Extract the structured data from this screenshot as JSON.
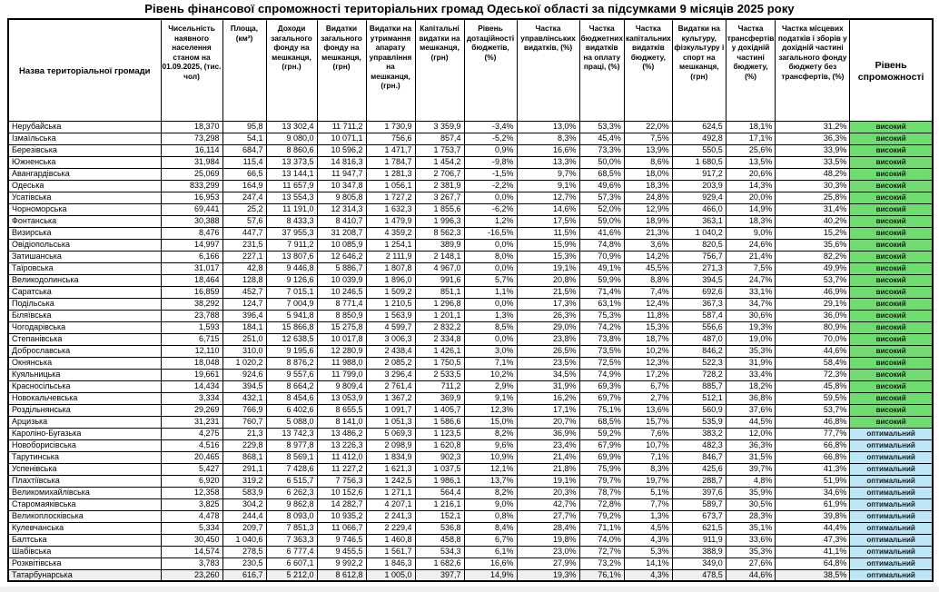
{
  "title": "Рівень фінансової спроможності територіальних громад Одеської області за підсумками 9 місяців 2025 року",
  "table": {
    "columns": [
      {
        "label": "Назва територіальної громади"
      },
      {
        "label": "Чисельність наявного населення станом на 01.09.2025, (тис. чол)"
      },
      {
        "label": "Площа, (км²)"
      },
      {
        "label": "Доходи загального фонду на мешканця, (грн.)"
      },
      {
        "label": "Видатки загального фонду на мешканця, (грн)"
      },
      {
        "label": "Видатки на утримання апарату управління на мешканця, (грн.)"
      },
      {
        "label": "Капітальні видатки на мешканця, (грн)"
      },
      {
        "label": "Рівень дотаційності бюджетів, (%)"
      },
      {
        "label": "Частка управлінських видатків, (%)"
      },
      {
        "label": "Частка бюджетних видатків на оплату праці, (%)"
      },
      {
        "label": "Частка капітальних видатків бюджету, (%)"
      },
      {
        "label": "Видатки на культуру, фізкультуру і спорт на мешканця, (грн)"
      },
      {
        "label": "Частка трансфертів у дохідній частині бюджету, (%)"
      },
      {
        "label": "Частка місцевих податків і зборів у дохідній частині загального фонду бюджету без трансфертів, (%)"
      },
      {
        "label": "Рівень спроможності"
      }
    ],
    "status_colors": {
      "високий": "#6fdc6f",
      "оптимальний": "#bde7f6"
    },
    "rows": [
      {
        "name": "Нерубайська",
        "values": [
          "18,370",
          "95,8",
          "13 302,4",
          "11 711,2",
          "1 730,9",
          "3 359,9",
          "-3,4%",
          "13,0%",
          "53,3%",
          "22,0%",
          "624,5",
          "18,1%",
          "31,2%"
        ],
        "status": "високий"
      },
      {
        "name": "Ізмаїльська",
        "values": [
          "73,298",
          "54,1",
          "9 080,0",
          "10 071,1",
          "756,6",
          "857,4",
          "-5,2%",
          "8,3%",
          "45,4%",
          "7,5%",
          "492,8",
          "17,1%",
          "36,3%"
        ],
        "status": "високий"
      },
      {
        "name": "Березівська",
        "values": [
          "16,114",
          "684,7",
          "8 860,6",
          "10 596,2",
          "1 471,7",
          "1 753,7",
          "0,9%",
          "16,6%",
          "73,3%",
          "13,9%",
          "550,5",
          "25,6%",
          "33,9%"
        ],
        "status": "високий"
      },
      {
        "name": "Южненська",
        "values": [
          "31,984",
          "115,4",
          "13 373,5",
          "14 816,3",
          "1 784,7",
          "1 454,2",
          "-9,8%",
          "13,3%",
          "50,0%",
          "8,6%",
          "1 680,5",
          "13,5%",
          "33,5%"
        ],
        "status": "високий"
      },
      {
        "name": "Авангардівська",
        "values": [
          "25,069",
          "66,5",
          "13 144,1",
          "11 947,7",
          "1 281,3",
          "2 706,7",
          "-1,5%",
          "9,7%",
          "68,5%",
          "18,0%",
          "917,2",
          "20,6%",
          "48,2%"
        ],
        "status": "високий"
      },
      {
        "name": "Одеська",
        "values": [
          "833,299",
          "164,9",
          "11 657,9",
          "10 347,8",
          "1 056,1",
          "2 381,9",
          "-2,2%",
          "9,1%",
          "49,6%",
          "18,3%",
          "203,9",
          "14,3%",
          "30,3%"
        ],
        "status": "високий"
      },
      {
        "name": "Усатівська",
        "values": [
          "16,953",
          "247,4",
          "13 554,3",
          "9 805,8",
          "1 727,2",
          "3 267,7",
          "0,0%",
          "12,7%",
          "57,3%",
          "24,8%",
          "929,4",
          "20,0%",
          "25,8%"
        ],
        "status": "високий"
      },
      {
        "name": "Чорноморська",
        "values": [
          "69,441",
          "25,2",
          "11 191,0",
          "12 314,3",
          "1 632,3",
          "1 855,6",
          "-6,2%",
          "14,6%",
          "52,0%",
          "12,9%",
          "466,0",
          "14,9%",
          "31,4%"
        ],
        "status": "високий"
      },
      {
        "name": "Фонтанська",
        "values": [
          "30,388",
          "57,6",
          "8 433,3",
          "8 410,7",
          "1 479,9",
          "1 996,3",
          "1,2%",
          "17,5%",
          "59,0%",
          "18,9%",
          "363,1",
          "18,3%",
          "40,2%"
        ],
        "status": "високий"
      },
      {
        "name": "Визирська",
        "values": [
          "8,476",
          "447,7",
          "37 955,3",
          "31 208,7",
          "4 359,2",
          "8 562,3",
          "-16,5%",
          "11,5%",
          "41,6%",
          "21,3%",
          "1 040,2",
          "9,0%",
          "15,2%"
        ],
        "status": "високий"
      },
      {
        "name": "Овідіопольська",
        "values": [
          "14,997",
          "231,5",
          "7 911,2",
          "10 085,9",
          "1 254,1",
          "389,9",
          "0,0%",
          "15,9%",
          "74,8%",
          "3,6%",
          "820,5",
          "24,6%",
          "35,6%"
        ],
        "status": "високий"
      },
      {
        "name": "Затишанська",
        "values": [
          "6,166",
          "227,1",
          "13 807,6",
          "12 646,2",
          "2 111,9",
          "2 148,1",
          "8,0%",
          "15,3%",
          "70,9%",
          "14,2%",
          "756,7",
          "21,4%",
          "82,2%"
        ],
        "status": "високий"
      },
      {
        "name": "Таїровська",
        "values": [
          "31,017",
          "42,8",
          "9 446,8",
          "5 886,7",
          "1 807,8",
          "4 967,0",
          "0,0%",
          "19,1%",
          "49,1%",
          "45,5%",
          "271,3",
          "7,5%",
          "49,9%"
        ],
        "status": "високий"
      },
      {
        "name": "Великодолинська",
        "values": [
          "18,464",
          "128,8",
          "9 126,6",
          "10 039,9",
          "1 896,0",
          "991,6",
          "5,7%",
          "20,8%",
          "59,9%",
          "8,8%",
          "394,5",
          "24,7%",
          "53,7%"
        ],
        "status": "високий"
      },
      {
        "name": "Саратська",
        "values": [
          "16,859",
          "452,7",
          "7 015,1",
          "10 246,5",
          "1 509,2",
          "851,1",
          "1,1%",
          "21,5%",
          "71,4%",
          "7,4%",
          "692,6",
          "33,1%",
          "46,9%"
        ],
        "status": "високий"
      },
      {
        "name": "Подільська",
        "values": [
          "38,292",
          "124,7",
          "7 004,9",
          "8 771,4",
          "1 210,5",
          "1 296,8",
          "0,0%",
          "17,3%",
          "63,1%",
          "12,4%",
          "367,3",
          "34,7%",
          "29,1%"
        ],
        "status": "високий"
      },
      {
        "name": "Біляївська",
        "values": [
          "23,788",
          "396,4",
          "5 941,8",
          "8 850,9",
          "1 563,9",
          "1 201,1",
          "1,3%",
          "26,3%",
          "75,3%",
          "11,8%",
          "587,4",
          "30,6%",
          "36,0%"
        ],
        "status": "високий"
      },
      {
        "name": "Чогодарівська",
        "values": [
          "1,593",
          "184,1",
          "15 866,8",
          "15 275,8",
          "4 599,7",
          "2 832,2",
          "8,5%",
          "29,0%",
          "74,2%",
          "15,3%",
          "556,6",
          "19,3%",
          "80,9%"
        ],
        "status": "високий"
      },
      {
        "name": "Степанівська",
        "values": [
          "6,715",
          "251,0",
          "12 638,5",
          "10 017,8",
          "3 006,3",
          "2 334,8",
          "0,0%",
          "23,8%",
          "73,8%",
          "18,7%",
          "487,0",
          "19,0%",
          "70,0%"
        ],
        "status": "високий"
      },
      {
        "name": "Доброславська",
        "values": [
          "12,110",
          "310,0",
          "9 195,6",
          "12 280,9",
          "2 438,4",
          "1 426,1",
          "3,0%",
          "26,5%",
          "73,5%",
          "10,2%",
          "846,2",
          "35,3%",
          "44,6%"
        ],
        "status": "високий"
      },
      {
        "name": "Окнянська",
        "values": [
          "18,048",
          "1 020,2",
          "8 876,2",
          "11 988,0",
          "2 085,2",
          "1 750,5",
          "7,1%",
          "23,5%",
          "72,5%",
          "12,3%",
          "522,3",
          "31,9%",
          "58,4%"
        ],
        "status": "високий"
      },
      {
        "name": "Куяльницька",
        "values": [
          "19,661",
          "924,6",
          "9 557,6",
          "11 799,0",
          "3 296,4",
          "2 533,5",
          "10,2%",
          "34,5%",
          "74,9%",
          "17,2%",
          "728,2",
          "33,4%",
          "72,3%"
        ],
        "status": "високий"
      },
      {
        "name": "Красносільська",
        "values": [
          "14,434",
          "394,5",
          "8 664,2",
          "9 809,4",
          "2 761,4",
          "711,2",
          "2,9%",
          "31,9%",
          "69,3%",
          "6,7%",
          "885,7",
          "18,2%",
          "45,8%"
        ],
        "status": "високий"
      },
      {
        "name": "Новокальчевська",
        "values": [
          "3,334",
          "432,1",
          "8 454,6",
          "13 053,9",
          "1 367,2",
          "369,9",
          "9,1%",
          "16,2%",
          "69,7%",
          "2,7%",
          "512,1",
          "36,8%",
          "59,5%"
        ],
        "status": "високий"
      },
      {
        "name": "Роздільнянська",
        "values": [
          "29,269",
          "766,9",
          "6 402,6",
          "8 655,5",
          "1 091,7",
          "1 405,7",
          "12,3%",
          "17,1%",
          "75,1%",
          "13,6%",
          "560,9",
          "37,6%",
          "53,7%"
        ],
        "status": "високий"
      },
      {
        "name": "Арцизька",
        "values": [
          "31,231",
          "760,7",
          "5 088,0",
          "8 141,0",
          "1 051,3",
          "1 586,6",
          "15,0%",
          "20,7%",
          "68,5%",
          "15,7%",
          "535,9",
          "44,5%",
          "46,8%"
        ],
        "status": "високий"
      },
      {
        "name": "Кароліно-Бугазька",
        "values": [
          "4,275",
          "21,3",
          "13 742,3",
          "13 486,2",
          "5 069,3",
          "1 123,5",
          "8,2%",
          "36,9%",
          "59,2%",
          "7,6%",
          "383,2",
          "12,0%",
          "77,7%"
        ],
        "status": "оптимальний"
      },
      {
        "name": "Новоборисівська",
        "values": [
          "4,516",
          "229,8",
          "8 977,8",
          "13 226,3",
          "2 098,9",
          "1 620,8",
          "9,6%",
          "23,4%",
          "67,9%",
          "10,7%",
          "482,3",
          "36,3%",
          "66,8%"
        ],
        "status": "оптимальний"
      },
      {
        "name": "Тарутинська",
        "values": [
          "20,465",
          "868,1",
          "8 569,1",
          "11 412,0",
          "1 834,9",
          "902,3",
          "10,9%",
          "21,4%",
          "69,9%",
          "7,1%",
          "846,7",
          "31,5%",
          "66,8%"
        ],
        "status": "оптимальний"
      },
      {
        "name": "Успенівська",
        "values": [
          "5,427",
          "291,1",
          "7 428,6",
          "11 227,2",
          "1 621,3",
          "1 037,5",
          "12,1%",
          "21,8%",
          "75,9%",
          "8,3%",
          "425,6",
          "39,7%",
          "41,3%"
        ],
        "status": "оптимальний"
      },
      {
        "name": "Плахтіївська",
        "values": [
          "6,920",
          "319,2",
          "6 515,7",
          "7 756,3",
          "1 242,5",
          "1 986,1",
          "13,7%",
          "19,1%",
          "79,7%",
          "19,7%",
          "288,7",
          "4,8%",
          "51,9%"
        ],
        "status": "оптимальний"
      },
      {
        "name": "Великомихайлівська",
        "values": [
          "12,358",
          "583,9",
          "6 262,3",
          "10 152,6",
          "1 271,1",
          "564,4",
          "8,2%",
          "20,3%",
          "78,7%",
          "5,1%",
          "397,6",
          "35,9%",
          "34,6%"
        ],
        "status": "оптимальний"
      },
      {
        "name": "Старомаяківська",
        "values": [
          "3,825",
          "304,2",
          "9 862,8",
          "14 282,7",
          "4 207,1",
          "1 216,1",
          "9,0%",
          "42,7%",
          "72,8%",
          "7,7%",
          "589,7",
          "30,5%",
          "61,9%"
        ],
        "status": "оптимальний"
      },
      {
        "name": "Великоплосківська",
        "values": [
          "4,478",
          "244,4",
          "8 093,0",
          "10 935,2",
          "2 241,3",
          "152,1",
          "0,8%",
          "27,7%",
          "79,2%",
          "1,3%",
          "673,7",
          "28,3%",
          "39,8%"
        ],
        "status": "оптимальний"
      },
      {
        "name": "Кулевчанська",
        "values": [
          "5,334",
          "209,7",
          "7 851,3",
          "11 066,7",
          "2 229,4",
          "536,8",
          "8,4%",
          "28,4%",
          "71,1%",
          "4,5%",
          "621,5",
          "35,1%",
          "44,4%"
        ],
        "status": "оптимальний"
      },
      {
        "name": "Балтська",
        "values": [
          "30,450",
          "1 040,6",
          "7 363,3",
          "9 746,5",
          "1 460,8",
          "458,8",
          "6,7%",
          "19,8%",
          "74,0%",
          "4,3%",
          "911,9",
          "33,6%",
          "47,3%"
        ],
        "status": "оптимальний"
      },
      {
        "name": "Шабівська",
        "values": [
          "14,574",
          "278,5",
          "6 777,4",
          "9 455,5",
          "1 561,7",
          "534,3",
          "6,1%",
          "23,0%",
          "72,7%",
          "5,3%",
          "388,9",
          "35,3%",
          "41,1%"
        ],
        "status": "оптимальний"
      },
      {
        "name": "Розквітівська",
        "values": [
          "3,783",
          "230,5",
          "6 607,1",
          "9 992,2",
          "1 846,3",
          "1 682,6",
          "16,6%",
          "27,9%",
          "73,2%",
          "14,1%",
          "349,0",
          "27,6%",
          "64,8%"
        ],
        "status": "оптимальний"
      },
      {
        "name": "Татарбунарська",
        "values": [
          "23,260",
          "616,7",
          "5 212,0",
          "8 612,8",
          "1 005,0",
          "397,7",
          "14,9%",
          "19,3%",
          "76,1%",
          "4,3%",
          "478,5",
          "44,6%",
          "38,5%"
        ],
        "status": "оптимальний"
      }
    ]
  }
}
